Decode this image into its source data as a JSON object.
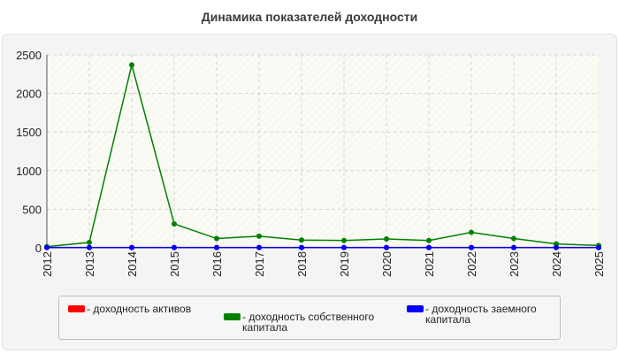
{
  "chart_data": {
    "type": "line",
    "title": "Динамика показателей доходности",
    "categories": [
      "2012",
      "2013",
      "2014",
      "2015",
      "2016",
      "2017",
      "2018",
      "2019",
      "2020",
      "2021",
      "2022",
      "2023",
      "2024",
      "2025"
    ],
    "ylim": [
      0,
      2500
    ],
    "yticks": [
      0,
      500,
      1000,
      1500,
      2000,
      2500
    ],
    "grid": true,
    "legend_position": "bottom",
    "series": [
      {
        "name": "доходность активов",
        "color": "#ff0000",
        "values": [
          5,
          5,
          5,
          5,
          5,
          5,
          5,
          5,
          5,
          5,
          5,
          5,
          5,
          5
        ]
      },
      {
        "name": "доходность собственного капитала",
        "color": "#008000",
        "values": [
          15,
          70,
          2370,
          310,
          120,
          150,
          100,
          95,
          115,
          95,
          200,
          120,
          50,
          30
        ]
      },
      {
        "name": "доходность заемного капитала",
        "color": "#0000ff",
        "values": [
          3,
          3,
          3,
          3,
          3,
          3,
          3,
          3,
          3,
          3,
          3,
          3,
          3,
          3
        ]
      }
    ]
  },
  "legend": {
    "items": [
      {
        "label": "- доходность активов",
        "color": "#ff0000"
      },
      {
        "label": "- доходность собственного капитала",
        "color": "#008000"
      },
      {
        "label": "- доходность заемного капитала",
        "color": "#0000ff"
      }
    ]
  }
}
